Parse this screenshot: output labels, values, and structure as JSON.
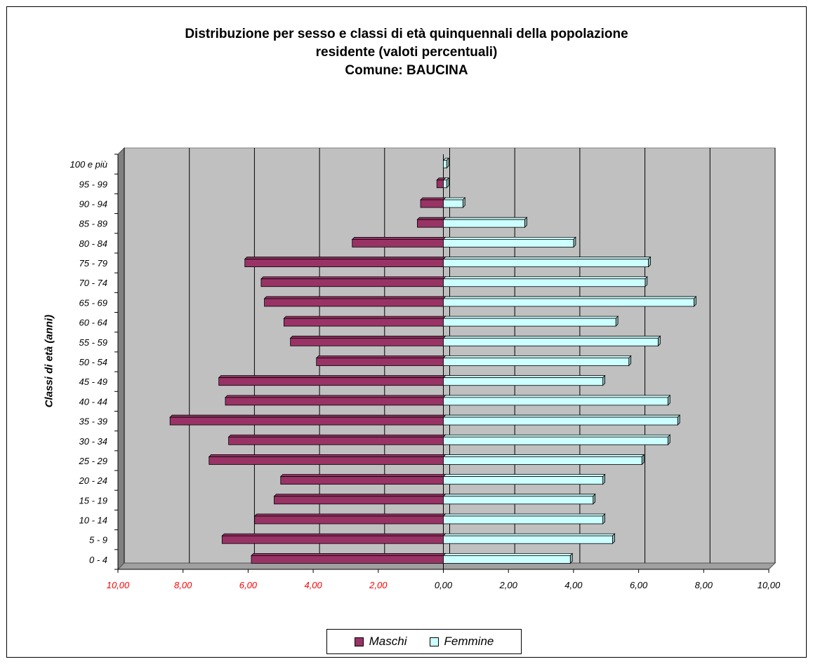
{
  "chart_data": {
    "type": "bar",
    "orientation": "horizontal",
    "title": "Distribuzione per sesso e classi di età quinquennali della popolazione residente (valoti percentuali)",
    "title_lines": [
      "Distribuzione per sesso e classi di età quinquennali della popolazione",
      "residente (valoti percentuali)",
      "Comune: BAUCINA"
    ],
    "subtitle": "Comune: BAUCINA",
    "ylabel": "Classi di età (anni)",
    "xlabel": "",
    "categories": [
      "0 - 4",
      "5 - 9",
      "10 - 14",
      "15 - 19",
      "20 - 24",
      "25 - 29",
      "30 - 34",
      "35 - 39",
      "40 - 44",
      "45 - 49",
      "50 - 54",
      "55 - 59",
      "60 - 64",
      "65 - 69",
      "70 - 74",
      "75 - 79",
      "80 - 84",
      "85 - 89",
      "90 - 94",
      "95 - 99",
      "100 e più"
    ],
    "series": [
      {
        "name": "Maschi",
        "color": "#993366",
        "values": [
          5.9,
          6.8,
          5.8,
          5.2,
          5.0,
          7.2,
          6.6,
          8.4,
          6.7,
          6.9,
          3.9,
          4.7,
          4.9,
          5.5,
          5.6,
          6.1,
          2.8,
          0.8,
          0.7,
          0.2,
          0.0
        ]
      },
      {
        "name": "Femmine",
        "color": "#ccffff",
        "values": [
          3.9,
          5.2,
          4.9,
          4.6,
          4.9,
          6.1,
          6.9,
          7.2,
          6.9,
          4.9,
          5.7,
          6.6,
          5.3,
          7.7,
          6.2,
          6.3,
          4.0,
          2.5,
          0.6,
          0.1,
          0.1
        ]
      }
    ],
    "xlim": [
      -10,
      10
    ],
    "x_ticks": [
      "10,00",
      "8,00",
      "6,00",
      "4,00",
      "2,00",
      "0,00",
      "2,00",
      "4,00",
      "6,00",
      "8,00",
      "10,00"
    ],
    "negative_tick_color": "#ff0000",
    "plot_background": "#c0c0c0",
    "grid": true,
    "legend_position": "bottom"
  }
}
